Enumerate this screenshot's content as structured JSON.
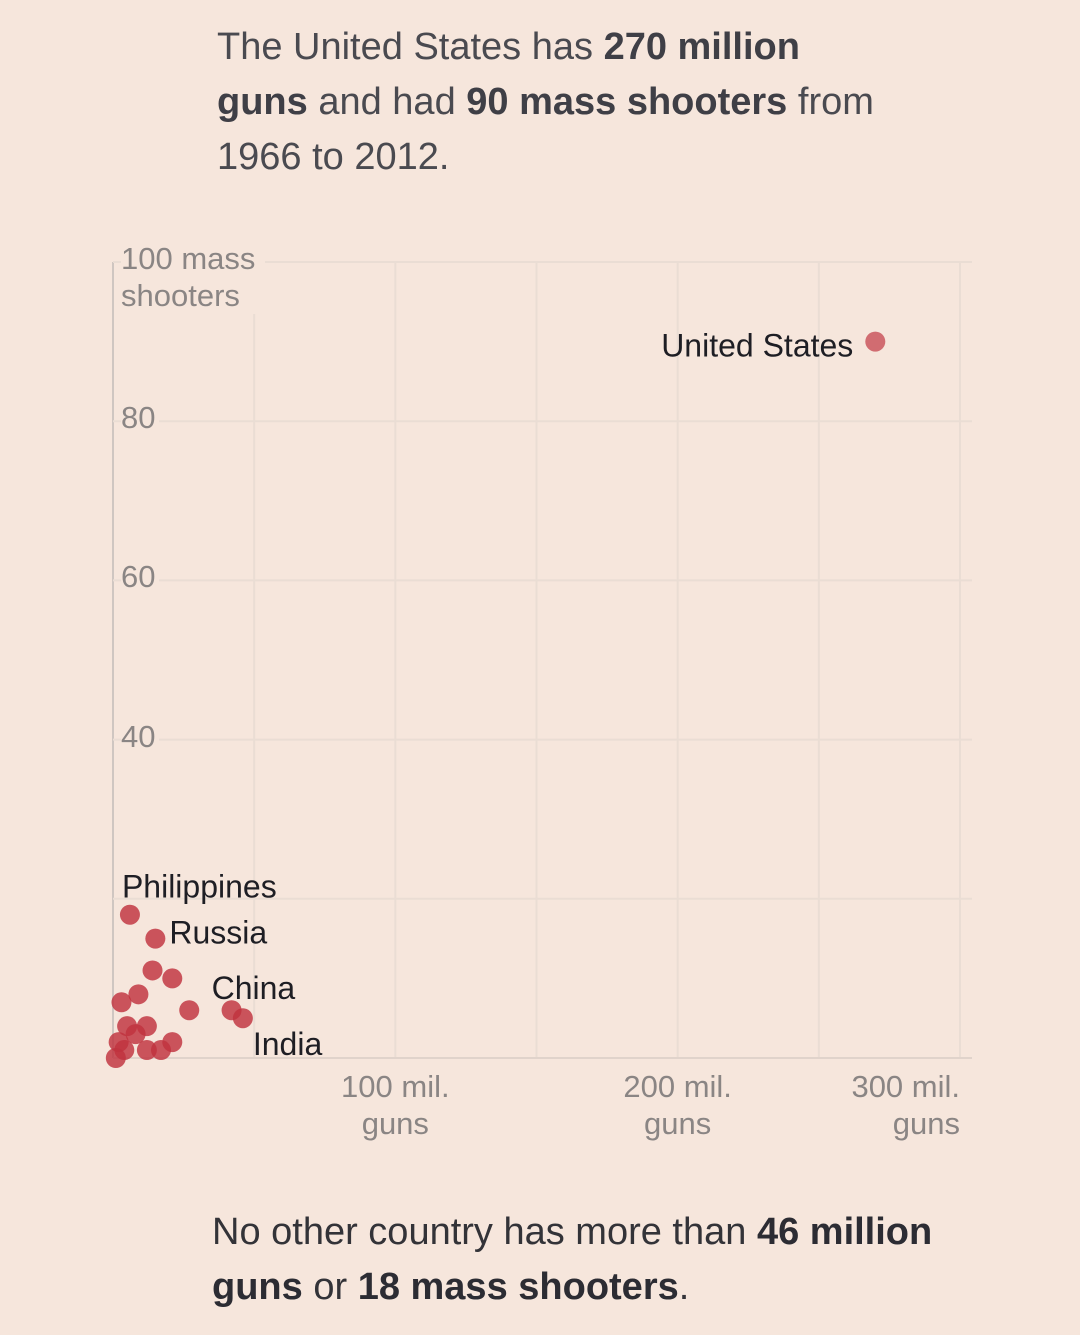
{
  "chart_data": {
    "type": "scatter",
    "headline": [
      {
        "text": "The United States has ",
        "bold": false
      },
      {
        "text": "270 million guns",
        "bold": true
      },
      {
        "text": " and had ",
        "bold": false
      },
      {
        "text": "90 mass shooters",
        "bold": true
      },
      {
        "text": " from 1966 to 2012.",
        "bold": false
      }
    ],
    "footnote": [
      {
        "text": "No other country has more than ",
        "bold": false
      },
      {
        "text": "46 million guns",
        "bold": true
      },
      {
        "text": " or ",
        "bold": false
      },
      {
        "text": "18 mass shooters",
        "bold": true
      },
      {
        "text": ".",
        "bold": false
      }
    ],
    "xlim": [
      0,
      300
    ],
    "ylim": [
      0,
      100
    ],
    "xgrid": [
      0,
      50,
      100,
      150,
      200,
      250,
      300
    ],
    "ygrid": [
      0,
      20,
      40,
      60,
      80,
      100
    ],
    "xticks": [
      {
        "value": 100,
        "label": "100 mil. guns"
      },
      {
        "value": 200,
        "label": "200 mil. guns"
      },
      {
        "value": 300,
        "label": "300 mil. guns"
      }
    ],
    "yticks": [
      {
        "value": 100,
        "label": "100 mass shooters"
      },
      80,
      60,
      40
    ],
    "series": [
      {
        "name": null,
        "color": "#c0323e",
        "labels": [
          "United States",
          "Philippines",
          "Russia",
          "China",
          "India",
          null,
          null,
          null,
          null,
          null,
          null,
          null,
          null,
          null,
          null,
          null,
          null,
          null,
          null
        ],
        "x": [
          270,
          6,
          15,
          42,
          46,
          14,
          21,
          9,
          27,
          3,
          12,
          5,
          21,
          12,
          17,
          2,
          4,
          8,
          1
        ],
        "values": [
          90,
          18,
          15,
          6,
          5,
          11,
          10,
          8,
          6,
          7,
          4,
          4,
          2,
          1,
          1,
          2,
          1,
          3,
          0
        ]
      }
    ]
  }
}
